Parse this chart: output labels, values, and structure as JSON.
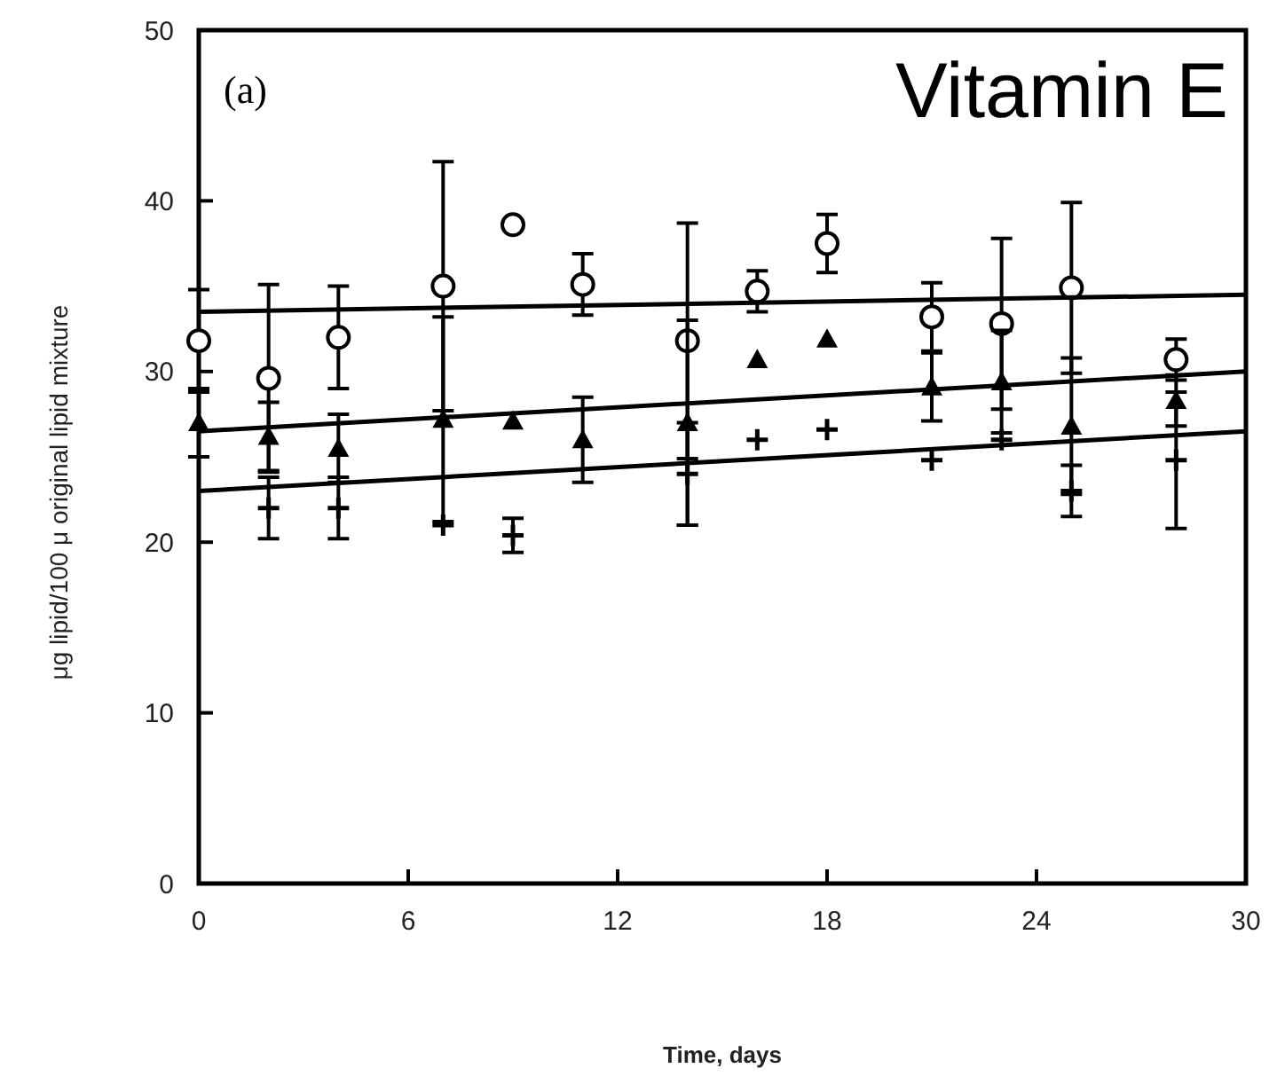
{
  "chart_data": {
    "type": "scatter",
    "xlabel": "Time, days",
    "ylabel": "μg lipid/100 μ original lipid mixture",
    "annotations": [
      "(a)",
      "Vitamin E"
    ],
    "xlim": [
      0,
      30
    ],
    "xticks": [
      0,
      6,
      12,
      18,
      24,
      30
    ],
    "ylim": [
      0,
      50
    ],
    "yticks": [
      0,
      10,
      20,
      30,
      40,
      50
    ],
    "grid": false,
    "series": [
      {
        "marker": "circle",
        "color": "#000000",
        "x": [
          0,
          2,
          4,
          7,
          9,
          11,
          14,
          16,
          18,
          21,
          23,
          25,
          28
        ],
        "values": [
          31.8,
          29.6,
          32,
          35,
          38.6,
          35.1,
          31.8,
          34.7,
          37.5,
          33.2,
          32.8,
          34.9,
          30.7
        ],
        "errors": [
          3,
          5.5,
          3,
          7.3,
          null,
          1.8,
          6.9,
          1.2,
          1.7,
          2,
          5,
          5,
          1.2
        ]
      },
      {
        "marker": "triangle",
        "color": "#000000",
        "x": [
          0,
          2,
          4,
          7,
          9,
          11,
          14,
          16,
          18,
          21,
          23,
          25,
          28
        ],
        "values": [
          27,
          26.2,
          25.5,
          27.2,
          27.1,
          26,
          27,
          30.7,
          31.9,
          29.1,
          29.4,
          26.8,
          28.3
        ],
        "errors": [
          2,
          2,
          2,
          6,
          null,
          2.5,
          6,
          null,
          null,
          2,
          3,
          4,
          1.5
        ]
      },
      {
        "marker": "cross",
        "color": "#000000",
        "x": [
          2,
          4,
          7,
          9,
          14,
          16,
          18,
          21,
          23,
          25,
          28
        ],
        "values": [
          22,
          22,
          21,
          20.4,
          24,
          26,
          26.6,
          24.8,
          26,
          23,
          24.8
        ],
        "errors": [
          1.8,
          1.8,
          null,
          1,
          3,
          null,
          null,
          null,
          null,
          1.5,
          4
        ]
      },
      {
        "type": "line",
        "marker": "none",
        "line_style": "solid",
        "color": "#000000",
        "x": [
          0,
          30
        ],
        "values": [
          33.5,
          34.5
        ]
      },
      {
        "type": "line",
        "marker": "none",
        "line_style": "solid",
        "color": "#000000",
        "x": [
          0,
          30
        ],
        "values": [
          26.5,
          30
        ]
      },
      {
        "type": "line",
        "marker": "none",
        "line_style": "solid",
        "color": "#000000",
        "x": [
          0,
          30
        ],
        "values": [
          23,
          26.5
        ]
      }
    ]
  }
}
